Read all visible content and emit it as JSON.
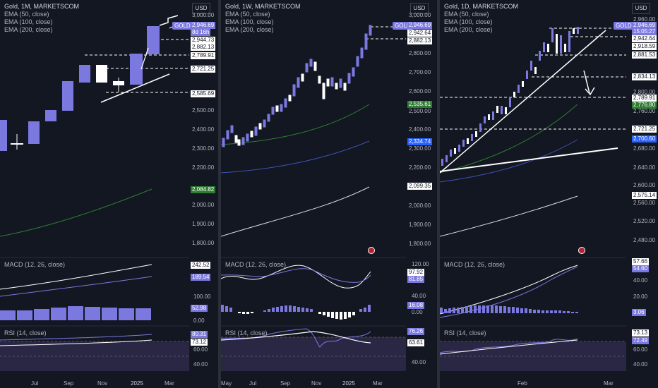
{
  "panels": [
    {
      "title": "Gold, 1M, MARKETSCOM",
      "ema_labels": [
        "EMA (50, close)",
        "EMA (100, close)",
        "EMA (200, close)"
      ],
      "currency_button": "USD",
      "y_ticks": [
        "3,000.00",
        "2,944.73",
        "2,882.13",
        "2,789.91",
        "2,721.25",
        "2,585.69",
        "2,500.00",
        "2,400.00",
        "2,300.00",
        "2,200.00",
        "2,100.00",
        "2,000.00",
        "1,900.00",
        "1,800.00"
      ],
      "price_tag": "2,946.69",
      "countdown": "8d 16h",
      "ema_tag": "2,084.82",
      "macd_title": "MACD (12, 26, close)",
      "macd_ticks": [
        "242.52",
        "189.54",
        "100.00",
        "52.98",
        "0.00"
      ],
      "rsi_title": "RSI (14, close)",
      "rsi_ticks": [
        "80.31",
        "73.12",
        "60.00",
        "40.00"
      ],
      "x_labels": [
        "Jul",
        "Sep",
        "Nov",
        "2025",
        "Mar"
      ]
    },
    {
      "title": "Gold, 1W, MARKETSCOM",
      "ema_labels": [
        "EMA (50, close)",
        "EMA (100, close)",
        "EMA (200, close)"
      ],
      "currency_button": "USD",
      "y_ticks": [
        "3,000.00",
        "2,942.64",
        "2,882.13",
        "2,800.00",
        "2,700.00",
        "2,600.00",
        "2,535.61",
        "2,500.00",
        "2,400.00",
        "2,334.74",
        "2,300.00",
        "2,200.00",
        "2,099.35",
        "2,000.00",
        "1,900.00",
        "1,800.00"
      ],
      "price_tag": "2,946.69",
      "macd_title": "MACD (12, 26, close)",
      "macd_ticks": [
        "120.00",
        "97.92",
        "81.85",
        "40.00",
        "16.08",
        "0.00"
      ],
      "rsi_title": "RSI (14, close)",
      "rsi_ticks": [
        "76.26",
        "63.61",
        "40.00"
      ],
      "x_labels": [
        "May",
        "Jul",
        "Sep",
        "Nov",
        "2025",
        "Mar"
      ]
    },
    {
      "title": "Gold, 1D, MARKETSCOM",
      "ema_labels": [
        "EMA (50, close)",
        "EMA (100, close)",
        "EMA (200, close)"
      ],
      "currency_button": "USD",
      "y_ticks": [
        "2,960.00",
        "2,942.64",
        "2,918.59",
        "2,881.53",
        "2,834.13",
        "2,800.00",
        "2,789.91",
        "2,776.80",
        "2,760.00",
        "2,721.25",
        "2,700.60",
        "2,680.00",
        "2,640.00",
        "2,600.00",
        "2,575.14",
        "2,560.00",
        "2,520.00",
        "2,480.00"
      ],
      "price_tag": "2,946.69",
      "countdown": "15:05:27",
      "macd_title": "MACD (12, 26, close)",
      "macd_ticks": [
        "57.66",
        "54.60",
        "40.00",
        "20.00",
        "3.06"
      ],
      "rsi_title": "RSI (14, close)",
      "rsi_ticks": [
        "73.13",
        "72.49",
        "60.00",
        "40.00"
      ],
      "x_labels": [
        "Feb",
        "Mar"
      ]
    }
  ],
  "symbol_label": "GOLD",
  "colors": {
    "bull": "#7b78e0",
    "bear": "#ffffff",
    "ema50": "#2e7d32",
    "ema100": "#3f51b5",
    "ema200": "#e0e0e0",
    "bg": "#131722"
  }
}
